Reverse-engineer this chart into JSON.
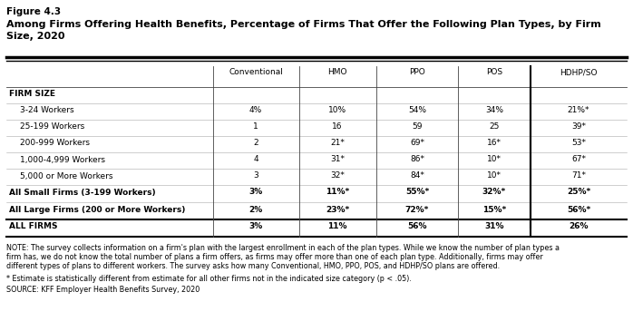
{
  "figure_label": "Figure 4.3",
  "title_line1": "Among Firms Offering Health Benefits, Percentage of Firms That Offer the Following Plan Types, by Firm",
  "title_line2": "Size, 2020",
  "col_headers": [
    "Conventional",
    "HMO",
    "PPO",
    "POS",
    "HDHP/SO"
  ],
  "row_labels": [
    "FIRM SIZE",
    "3-24 Workers",
    "25-199 Workers",
    "200-999 Workers",
    "1,000-4,999 Workers",
    "5,000 or More Workers",
    "All Small Firms (3-199 Workers)",
    "All Large Firms (200 or More Workers)",
    "ALL FIRMS"
  ],
  "row_indent": [
    false,
    true,
    true,
    true,
    true,
    true,
    false,
    false,
    false
  ],
  "row_bold": [
    true,
    false,
    false,
    false,
    false,
    false,
    true,
    true,
    true
  ],
  "data": [
    [
      "",
      "",
      "",
      "",
      ""
    ],
    [
      "4%",
      "10%",
      "54%",
      "34%",
      "21%*"
    ],
    [
      "1",
      "16",
      "59",
      "25",
      "39*"
    ],
    [
      "2",
      "21*",
      "69*",
      "16*",
      "53*"
    ],
    [
      "4",
      "31*",
      "86*",
      "10*",
      "67*"
    ],
    [
      "3",
      "32*",
      "84*",
      "10*",
      "71*"
    ],
    [
      "3%",
      "11%*",
      "55%*",
      "32%*",
      "25%*"
    ],
    [
      "2%",
      "23%*",
      "72%*",
      "15%*",
      "56%*"
    ],
    [
      "3%",
      "11%",
      "56%",
      "31%",
      "26%"
    ]
  ],
  "note_line1": "NOTE: The survey collects information on a firm's plan with the largest enrollment in each of the plan types. While we know the number of plan types a",
  "note_line2": "firm has, we do not know the total number of plans a firm offers, as firms may offer more than one of each plan type. Additionally, firms may offer",
  "note_line3": "different types of plans to different workers. The survey asks how many Conventional, HMO, PPO, POS, and HDHP/SO plans are offered.",
  "footnote": "* Estimate is statistically different from estimate for all other firms not in the indicated size category (p < .05).",
  "source": "SOURCE: KFF Employer Health Benefits Survey, 2020",
  "bg_color": "#ffffff",
  "text_color": "#000000"
}
